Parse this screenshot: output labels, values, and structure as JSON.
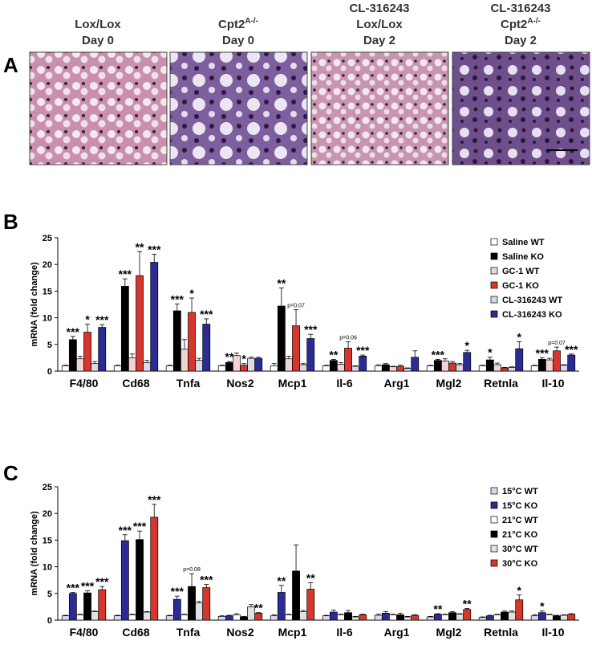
{
  "panel_a": {
    "label": "A",
    "headers": [
      [
        {
          "text": "Lox/Lox"
        },
        {
          "text": "Day 0"
        }
      ],
      [
        {
          "text": "Cpt2",
          "sup": "A-/-"
        },
        {
          "text": "Day 0"
        }
      ],
      [
        {
          "text": "CL-316243"
        },
        {
          "text": "Lox/Lox"
        },
        {
          "text": "Day 2"
        }
      ],
      [
        {
          "text": "CL-316243"
        },
        {
          "text": "Cpt2",
          "sup": "A-/-"
        },
        {
          "text": "Day 2"
        }
      ]
    ]
  },
  "chart_data": [
    {
      "type": "bar",
      "panel_label": "B",
      "ylabel": "mRNA (fold change)",
      "categories": [
        "F4/80",
        "Cd68",
        "Tnfa",
        "Nos2",
        "Mcp1",
        "Il-6",
        "Arg1",
        "Mgl2",
        "Retnla",
        "Il-10"
      ],
      "ylim": [
        0,
        25
      ],
      "yticks": [
        0,
        5,
        10,
        15,
        20,
        25
      ],
      "legend": "top-right",
      "series": [
        {
          "name": "Saline WT",
          "color": "#ffffff",
          "values": [
            1.0,
            1.0,
            1.0,
            1.0,
            1.0,
            1.0,
            1.0,
            1.0,
            1.0,
            1.0
          ],
          "errors": [
            0.1,
            0.1,
            0.1,
            0.1,
            0.4,
            0.1,
            0.2,
            0.1,
            0.1,
            0.1
          ],
          "annotations": [
            null,
            null,
            null,
            null,
            null,
            null,
            null,
            null,
            null,
            null
          ]
        },
        {
          "name": "Saline KO",
          "color": "#000000",
          "values": [
            5.9,
            15.9,
            11.3,
            1.6,
            12.2,
            2.0,
            1.2,
            2.0,
            2.1,
            2.2
          ],
          "errors": [
            0.6,
            1.4,
            1.3,
            0.2,
            3.4,
            0.2,
            0.2,
            0.2,
            0.5,
            0.3
          ],
          "annotations": [
            "***",
            "***",
            "***",
            "**",
            "**",
            "**",
            null,
            "***",
            "*",
            "***"
          ]
        },
        {
          "name": "GC-1 WT",
          "color": "#f0d4d4",
          "values": [
            2.3,
            2.5,
            4.1,
            2.9,
            2.3,
            1.3,
            0.8,
            1.9,
            1.2,
            2.1
          ],
          "errors": [
            0.5,
            0.7,
            1.8,
            0.5,
            0.5,
            0.3,
            0.1,
            0.4,
            0.3,
            0.3
          ],
          "annotations": [
            null,
            null,
            null,
            null,
            null,
            null,
            null,
            null,
            null,
            null
          ]
        },
        {
          "name": "GC-1 KO",
          "color": "#d6362b",
          "values": [
            7.3,
            17.9,
            11.0,
            1.1,
            8.5,
            4.3,
            0.9,
            1.5,
            0.6,
            3.8
          ],
          "errors": [
            1.5,
            4.5,
            2.7,
            0.3,
            3.0,
            1.2,
            0.2,
            0.3,
            0.1,
            0.7
          ],
          "annotations": [
            "*",
            "**",
            "*",
            "*",
            "p=0.07",
            "p=0.06",
            null,
            null,
            null,
            "p=0.07"
          ]
        },
        {
          "name": "CL-316243 WT",
          "color": "#d8d8ee",
          "values": [
            1.4,
            1.6,
            2.0,
            2.4,
            1.2,
            0.9,
            0.5,
            1.2,
            0.7,
            1.1
          ],
          "errors": [
            0.4,
            0.4,
            0.4,
            0.2,
            0.2,
            0.1,
            0.1,
            0.2,
            0.1,
            0.1
          ],
          "annotations": [
            null,
            null,
            null,
            null,
            null,
            null,
            null,
            null,
            null,
            null
          ]
        },
        {
          "name": "CL-316243 KO",
          "color": "#2b2b94",
          "values": [
            8.2,
            20.4,
            8.8,
            2.4,
            6.1,
            2.8,
            2.6,
            3.5,
            4.2,
            3.0
          ],
          "errors": [
            0.5,
            1.5,
            1.0,
            0.2,
            0.8,
            0.2,
            1.2,
            0.4,
            1.3,
            0.2
          ],
          "annotations": [
            "***",
            "***",
            "***",
            null,
            "***",
            "***",
            null,
            "*",
            "*",
            "***"
          ]
        }
      ]
    },
    {
      "type": "bar",
      "panel_label": "C",
      "ylabel": "mRNA (fold change)",
      "categories": [
        "F4/80",
        "Cd68",
        "Tnfa",
        "Nos2",
        "Mcp1",
        "Il-6",
        "Arg1",
        "Mgl2",
        "Retnla",
        "Il-10"
      ],
      "ylim": [
        0,
        25
      ],
      "yticks": [
        0,
        5,
        10,
        15,
        20,
        25
      ],
      "legend": "top-right",
      "series": [
        {
          "name": "15°C WT",
          "color": "#d8d8ee",
          "values": [
            0.8,
            0.8,
            0.8,
            0.7,
            0.8,
            0.8,
            0.9,
            0.6,
            0.5,
            0.8
          ],
          "errors": [
            0.1,
            0.1,
            0.1,
            0.1,
            0.2,
            0.1,
            0.2,
            0.1,
            0.1,
            0.2
          ],
          "annotations": [
            null,
            null,
            null,
            null,
            null,
            null,
            null,
            null,
            null,
            null
          ]
        },
        {
          "name": "15°C KO",
          "color": "#2b2b94",
          "values": [
            5.0,
            14.9,
            3.9,
            0.8,
            5.2,
            1.5,
            1.3,
            1.1,
            0.8,
            1.4
          ],
          "errors": [
            0.2,
            1.1,
            0.6,
            0.1,
            1.3,
            0.4,
            0.3,
            0.1,
            0.1,
            0.3
          ],
          "annotations": [
            "***",
            "***",
            "***",
            null,
            "**",
            null,
            null,
            "**",
            null,
            "*"
          ]
        },
        {
          "name": "21°C WT",
          "color": "#ffffff",
          "values": [
            1.0,
            1.0,
            1.0,
            1.0,
            1.0,
            1.0,
            1.0,
            1.0,
            1.0,
            1.0
          ],
          "errors": [
            0.1,
            0.1,
            0.1,
            0.2,
            0.1,
            0.1,
            0.1,
            0.1,
            0.1,
            0.1
          ],
          "annotations": [
            null,
            null,
            null,
            null,
            null,
            null,
            null,
            null,
            null,
            null
          ]
        },
        {
          "name": "21°C KO",
          "color": "#000000",
          "values": [
            5.1,
            15.1,
            6.3,
            0.6,
            9.2,
            1.4,
            1.0,
            1.4,
            1.5,
            0.8
          ],
          "errors": [
            0.4,
            1.6,
            2.4,
            0.1,
            4.9,
            0.4,
            0.3,
            0.2,
            0.2,
            0.1
          ],
          "annotations": [
            "***",
            "***",
            "p=0.08",
            null,
            null,
            null,
            null,
            null,
            null,
            null
          ]
        },
        {
          "name": "30°C WT",
          "color": "#e2e2e2",
          "values": [
            1.6,
            1.5,
            3.2,
            2.5,
            1.6,
            0.6,
            0.6,
            1.1,
            1.5,
            0.9
          ],
          "errors": [
            0.1,
            0.1,
            0.3,
            0.4,
            0.2,
            0.1,
            0.1,
            0.1,
            0.2,
            0.1
          ],
          "annotations": [
            null,
            null,
            null,
            null,
            null,
            null,
            null,
            null,
            null,
            null
          ]
        },
        {
          "name": "30°C KO",
          "color": "#d6362b",
          "values": [
            5.7,
            19.3,
            6.1,
            1.3,
            5.8,
            1.0,
            0.9,
            2.0,
            3.8,
            1.1
          ],
          "errors": [
            0.6,
            2.4,
            0.6,
            0.1,
            1.2,
            0.1,
            0.1,
            0.2,
            0.9,
            0.1
          ],
          "annotations": [
            "***",
            "***",
            "***",
            "**",
            "**",
            null,
            null,
            "**",
            "*",
            null
          ]
        }
      ]
    }
  ]
}
